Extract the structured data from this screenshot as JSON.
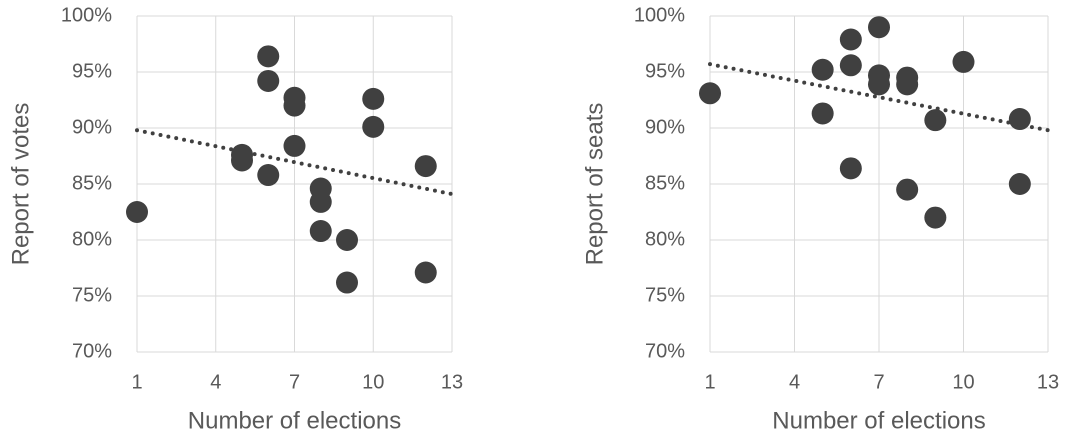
{
  "chart_data": [
    {
      "type": "scatter",
      "xlabel": "Number of elections",
      "ylabel": "Report of votes",
      "xlim": [
        1,
        13
      ],
      "xticks": [
        1,
        4,
        7,
        10,
        13
      ],
      "ylim": [
        70,
        100
      ],
      "yticks": [
        {
          "value": 70,
          "label": "70%"
        },
        {
          "value": 75,
          "label": "75%"
        },
        {
          "value": 80,
          "label": "80%"
        },
        {
          "value": 85,
          "label": "85%"
        },
        {
          "value": 90,
          "label": "90%"
        },
        {
          "value": 95,
          "label": "95%"
        },
        {
          "value": 100,
          "label": "100%"
        }
      ],
      "grid": true,
      "series": [
        {
          "color": "#404040",
          "x": [
            1,
            5,
            5,
            6,
            6,
            6,
            7,
            7,
            7,
            8,
            8,
            8,
            9,
            9,
            10,
            10,
            12,
            12
          ],
          "values": [
            82.5,
            87.6,
            87.1,
            96.4,
            94.2,
            85.8,
            92.7,
            92.0,
            88.4,
            84.6,
            83.4,
            80.8,
            80.0,
            76.2,
            92.6,
            90.1,
            86.6,
            77.1
          ]
        }
      ],
      "trendline": {
        "color": "#404040",
        "x": [
          1,
          13
        ],
        "values": [
          89.8,
          84.1
        ]
      }
    },
    {
      "type": "scatter",
      "xlabel": "Number of elections",
      "ylabel": "Report of seats",
      "xlim": [
        1,
        13
      ],
      "xticks": [
        1,
        4,
        7,
        10,
        13
      ],
      "ylim": [
        70,
        100
      ],
      "yticks": [
        {
          "value": 70,
          "label": "70%"
        },
        {
          "value": 75,
          "label": "75%"
        },
        {
          "value": 80,
          "label": "80%"
        },
        {
          "value": 85,
          "label": "85%"
        },
        {
          "value": 90,
          "label": "90%"
        },
        {
          "value": 95,
          "label": "95%"
        },
        {
          "value": 100,
          "label": "100%"
        }
      ],
      "grid": true,
      "series": [
        {
          "color": "#404040",
          "x": [
            1,
            5,
            5,
            6,
            6,
            6,
            7,
            7,
            7,
            8,
            8,
            8,
            9,
            9,
            10,
            12,
            12
          ],
          "values": [
            93.1,
            95.2,
            91.3,
            97.9,
            95.6,
            86.4,
            99.0,
            94.7,
            93.9,
            94.5,
            93.9,
            84.5,
            90.7,
            82.0,
            95.9,
            90.8,
            85.0
          ]
        }
      ],
      "trendline": {
        "color": "#404040",
        "x": [
          1,
          13
        ],
        "values": [
          95.7,
          89.8
        ]
      }
    }
  ]
}
